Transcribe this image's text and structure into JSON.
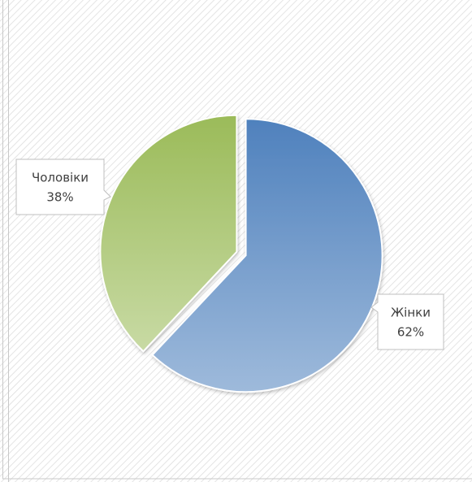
{
  "chart_data": {
    "type": "pie",
    "categories": [
      "Жінки",
      "Чоловіки"
    ],
    "values": [
      62,
      38
    ],
    "value_labels": [
      "62%",
      "38%"
    ],
    "colors": [
      "#4f81bd",
      "#9bbb59"
    ]
  }
}
